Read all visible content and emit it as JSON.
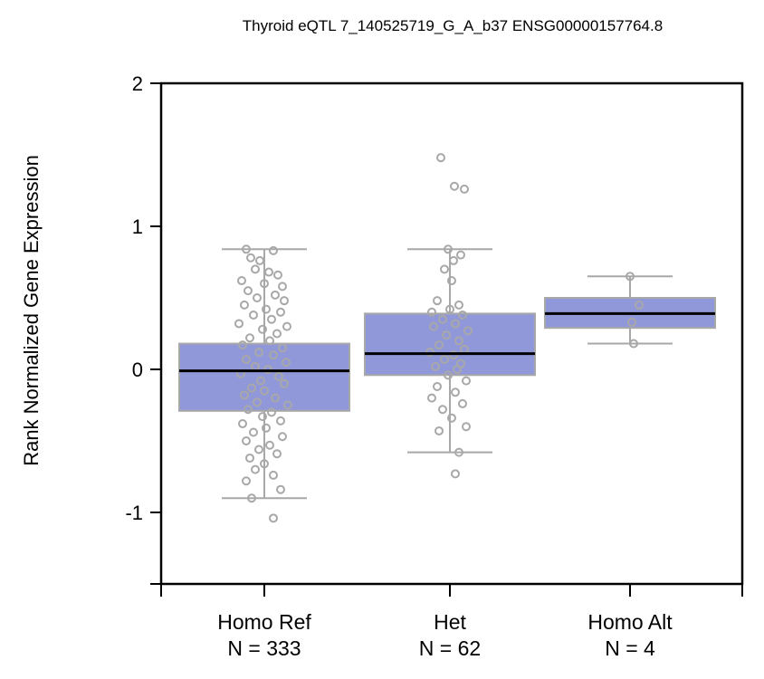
{
  "chart_data": {
    "type": "box",
    "title": "Thyroid eQTL 7_140525719_G_A_b37 ENSG00000157764.8",
    "xlabel": "",
    "ylabel": "Rank Normalized Gene Expression",
    "ylim": [
      -1.5,
      2
    ],
    "y_ticks": [
      "2",
      "1",
      "0",
      "-1"
    ],
    "y_tick_values": [
      2,
      1,
      0,
      -1
    ],
    "grid": false,
    "colors": {
      "box_fill": "#9198d9",
      "box_stroke": "#a8a8a8",
      "median": "#000000",
      "points": "#a8a8a8",
      "axis": "#000000"
    },
    "groups": [
      {
        "name": "Homo Ref",
        "n_label": "N = 333",
        "q1": -0.29,
        "median": -0.01,
        "q3": 0.18,
        "whisker_low": -0.9,
        "whisker_high": 0.84,
        "points": [
          {
            "x": -0.2,
            "y": 0.84
          },
          {
            "x": 0.1,
            "y": 0.83
          },
          {
            "x": -0.15,
            "y": 0.78
          },
          {
            "x": -0.05,
            "y": 0.76
          },
          {
            "x": -0.1,
            "y": 0.7
          },
          {
            "x": 0.05,
            "y": 0.68
          },
          {
            "x": 0.15,
            "y": 0.66
          },
          {
            "x": -0.25,
            "y": 0.62
          },
          {
            "x": 0.0,
            "y": 0.6
          },
          {
            "x": 0.2,
            "y": 0.58
          },
          {
            "x": -0.18,
            "y": 0.55
          },
          {
            "x": 0.12,
            "y": 0.52
          },
          {
            "x": -0.08,
            "y": 0.5
          },
          {
            "x": 0.22,
            "y": 0.48
          },
          {
            "x": -0.22,
            "y": 0.45
          },
          {
            "x": 0.02,
            "y": 0.42
          },
          {
            "x": 0.18,
            "y": 0.4
          },
          {
            "x": -0.12,
            "y": 0.38
          },
          {
            "x": 0.08,
            "y": 0.35
          },
          {
            "x": -0.28,
            "y": 0.32
          },
          {
            "x": 0.25,
            "y": 0.3
          },
          {
            "x": -0.02,
            "y": 0.28
          },
          {
            "x": 0.14,
            "y": 0.25
          },
          {
            "x": -0.16,
            "y": 0.22
          },
          {
            "x": 0.06,
            "y": 0.2
          },
          {
            "x": -0.24,
            "y": 0.17
          },
          {
            "x": 0.2,
            "y": 0.15
          },
          {
            "x": -0.06,
            "y": 0.12
          },
          {
            "x": 0.1,
            "y": 0.1
          },
          {
            "x": -0.2,
            "y": 0.07
          },
          {
            "x": 0.24,
            "y": 0.05
          },
          {
            "x": -0.1,
            "y": 0.02
          },
          {
            "x": 0.04,
            "y": 0.0
          },
          {
            "x": -0.26,
            "y": -0.03
          },
          {
            "x": 0.16,
            "y": -0.05
          },
          {
            "x": -0.04,
            "y": -0.08
          },
          {
            "x": 0.22,
            "y": -0.1
          },
          {
            "x": -0.14,
            "y": -0.13
          },
          {
            "x": 0.0,
            "y": -0.15
          },
          {
            "x": -0.22,
            "y": -0.18
          },
          {
            "x": 0.12,
            "y": -0.2
          },
          {
            "x": -0.08,
            "y": -0.23
          },
          {
            "x": 0.26,
            "y": -0.25
          },
          {
            "x": -0.18,
            "y": -0.28
          },
          {
            "x": 0.08,
            "y": -0.3
          },
          {
            "x": -0.02,
            "y": -0.33
          },
          {
            "x": 0.18,
            "y": -0.36
          },
          {
            "x": -0.24,
            "y": -0.38
          },
          {
            "x": 0.02,
            "y": -0.41
          },
          {
            "x": -0.12,
            "y": -0.44
          },
          {
            "x": 0.2,
            "y": -0.47
          },
          {
            "x": -0.2,
            "y": -0.5
          },
          {
            "x": 0.06,
            "y": -0.53
          },
          {
            "x": -0.06,
            "y": -0.56
          },
          {
            "x": 0.14,
            "y": -0.59
          },
          {
            "x": -0.16,
            "y": -0.62
          },
          {
            "x": 0.0,
            "y": -0.66
          },
          {
            "x": -0.1,
            "y": -0.7
          },
          {
            "x": 0.1,
            "y": -0.74
          },
          {
            "x": -0.2,
            "y": -0.78
          },
          {
            "x": 0.18,
            "y": -0.84
          },
          {
            "x": -0.14,
            "y": -0.9
          },
          {
            "x": 0.1,
            "y": -1.04
          }
        ]
      },
      {
        "name": "Het",
        "n_label": "N = 62",
        "q1": -0.04,
        "median": 0.11,
        "q3": 0.39,
        "whisker_low": -0.58,
        "whisker_high": 0.84,
        "points": [
          {
            "x": -0.1,
            "y": 1.48
          },
          {
            "x": 0.05,
            "y": 1.28
          },
          {
            "x": 0.16,
            "y": 1.26
          },
          {
            "x": -0.02,
            "y": 0.84
          },
          {
            "x": 0.12,
            "y": 0.8
          },
          {
            "x": 0.04,
            "y": 0.76
          },
          {
            "x": -0.06,
            "y": 0.7
          },
          {
            "x": 0.02,
            "y": 0.62
          },
          {
            "x": -0.14,
            "y": 0.48
          },
          {
            "x": 0.1,
            "y": 0.45
          },
          {
            "x": 0.0,
            "y": 0.42
          },
          {
            "x": -0.2,
            "y": 0.4
          },
          {
            "x": 0.14,
            "y": 0.38
          },
          {
            "x": -0.08,
            "y": 0.35
          },
          {
            "x": 0.06,
            "y": 0.32
          },
          {
            "x": -0.18,
            "y": 0.3
          },
          {
            "x": 0.2,
            "y": 0.27
          },
          {
            "x": -0.04,
            "y": 0.24
          },
          {
            "x": 0.1,
            "y": 0.2
          },
          {
            "x": -0.12,
            "y": 0.17
          },
          {
            "x": 0.16,
            "y": 0.14
          },
          {
            "x": -0.22,
            "y": 0.12
          },
          {
            "x": 0.04,
            "y": 0.1
          },
          {
            "x": -0.06,
            "y": 0.07
          },
          {
            "x": 0.12,
            "y": 0.04
          },
          {
            "x": -0.16,
            "y": 0.02
          },
          {
            "x": 0.08,
            "y": 0.0
          },
          {
            "x": -0.02,
            "y": -0.04
          },
          {
            "x": 0.18,
            "y": -0.08
          },
          {
            "x": -0.14,
            "y": -0.12
          },
          {
            "x": 0.06,
            "y": -0.16
          },
          {
            "x": -0.2,
            "y": -0.2
          },
          {
            "x": 0.14,
            "y": -0.24
          },
          {
            "x": -0.08,
            "y": -0.28
          },
          {
            "x": 0.02,
            "y": -0.34
          },
          {
            "x": 0.18,
            "y": -0.4
          },
          {
            "x": -0.12,
            "y": -0.43
          },
          {
            "x": 0.1,
            "y": -0.58
          },
          {
            "x": 0.06,
            "y": -0.73
          }
        ]
      },
      {
        "name": "Homo Alt",
        "n_label": "N = 4",
        "q1": 0.29,
        "median": 0.39,
        "q3": 0.5,
        "whisker_low": 0.18,
        "whisker_high": 0.65,
        "points": [
          {
            "x": 0.0,
            "y": 0.65
          },
          {
            "x": 0.1,
            "y": 0.45
          },
          {
            "x": 0.02,
            "y": 0.33
          },
          {
            "x": 0.04,
            "y": 0.18
          }
        ]
      }
    ]
  }
}
